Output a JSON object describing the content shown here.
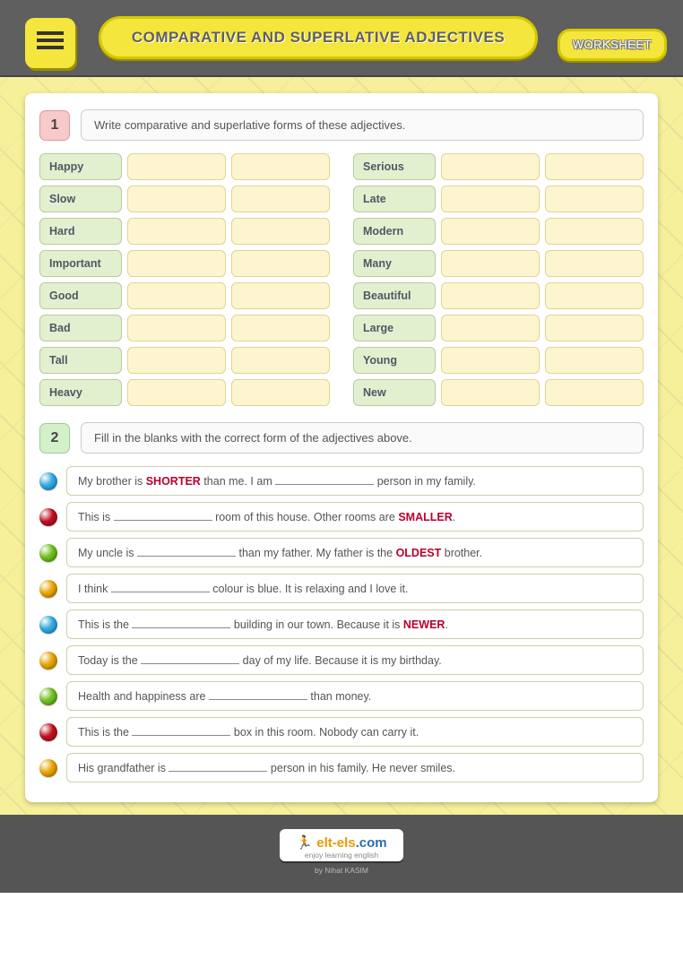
{
  "header": {
    "title": "COMPARATIVE AND SUPERLATIVE ADJECTIVES",
    "badge": "WORKSHEET"
  },
  "task1": {
    "num": "1",
    "text": "Write comparative and superlative forms of these adjectives.",
    "left": [
      "Happy",
      "Slow",
      "Hard",
      "Important",
      "Good",
      "Bad",
      "Tall",
      "Heavy"
    ],
    "right": [
      "Serious",
      "Late",
      "Modern",
      "Many",
      "Beautiful",
      "Large",
      "Young",
      "New"
    ]
  },
  "task2": {
    "num": "2",
    "text": "Fill in the blanks with the correct form of the adjectives above.",
    "rows": [
      {
        "c": "#2fa9e0",
        "p": [
          "My brother is ",
          [
            "hl",
            "SHORTER"
          ],
          " than me. I am ",
          [
            "bl"
          ],
          " person in my family."
        ]
      },
      {
        "c": "#c01020",
        "p": [
          "This is ",
          [
            "bl"
          ],
          " room of this house. Other rooms are ",
          [
            "hl",
            "SMALLER"
          ],
          "."
        ]
      },
      {
        "c": "#6fbf1f",
        "p": [
          "My uncle is ",
          [
            "bl"
          ],
          " than my father. My father is the ",
          [
            "hl",
            "OLDEST"
          ],
          " brother."
        ]
      },
      {
        "c": "#e8a400",
        "p": [
          "I think ",
          [
            "bl"
          ],
          " colour is blue. It is relaxing and I love it."
        ]
      },
      {
        "c": "#2fa9e0",
        "p": [
          "This is the ",
          [
            "bl"
          ],
          " building in our town. Because it is ",
          [
            "hl",
            "NEWER"
          ],
          "."
        ]
      },
      {
        "c": "#e8a400",
        "p": [
          "Today is the ",
          [
            "bl"
          ],
          " day of my life. Because it is my birthday."
        ]
      },
      {
        "c": "#6fbf1f",
        "p": [
          "Health and happiness are ",
          [
            "bl"
          ],
          " than money."
        ]
      },
      {
        "c": "#c01020",
        "p": [
          "This is the ",
          [
            "bl"
          ],
          " box in this room. Nobody can carry it."
        ]
      },
      {
        "c": "#e8a400",
        "p": [
          "His grandfather is ",
          [
            "bl"
          ],
          " person in his family. He never smiles."
        ]
      }
    ]
  },
  "footer": {
    "brand_o": "elt-els",
    "brand_b": ".com",
    "tag": "enjoy learning english",
    "by": "by Nihat KASIM"
  }
}
